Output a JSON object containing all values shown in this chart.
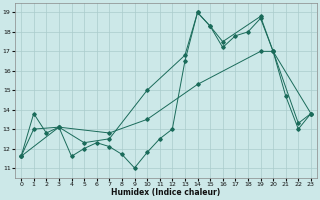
{
  "title": "",
  "xlabel": "Humidex (Indice chaleur)",
  "bg_color": "#cce8e8",
  "grid_color": "#aacccc",
  "line_color": "#1a6b5a",
  "xlim": [
    -0.5,
    23.5
  ],
  "ylim": [
    10.5,
    19.5
  ],
  "xticks": [
    0,
    1,
    2,
    3,
    4,
    5,
    6,
    7,
    8,
    9,
    10,
    11,
    12,
    13,
    14,
    15,
    16,
    17,
    18,
    19,
    20,
    21,
    22,
    23
  ],
  "yticks": [
    11,
    12,
    13,
    14,
    15,
    16,
    17,
    18,
    19
  ],
  "line1_x": [
    0,
    1,
    2,
    3,
    4,
    5,
    6,
    7,
    8,
    9,
    10,
    11,
    12,
    13,
    14,
    15,
    16,
    17,
    18,
    19,
    20,
    21,
    22,
    23
  ],
  "line1_y": [
    11.6,
    13.8,
    12.8,
    13.1,
    11.6,
    12.0,
    12.3,
    12.1,
    11.7,
    11.0,
    11.8,
    12.5,
    13.0,
    16.5,
    19.0,
    18.3,
    17.2,
    17.8,
    18.0,
    18.7,
    17.0,
    14.7,
    13.0,
    13.8
  ],
  "line2_x": [
    0,
    1,
    3,
    5,
    7,
    10,
    13,
    14,
    15,
    16,
    19,
    20,
    22,
    23
  ],
  "line2_y": [
    11.6,
    13.0,
    13.1,
    12.3,
    12.5,
    15.0,
    16.8,
    19.0,
    18.3,
    17.5,
    18.8,
    17.0,
    13.3,
    13.8
  ],
  "line3_x": [
    0,
    3,
    7,
    10,
    14,
    19,
    20,
    23
  ],
  "line3_y": [
    11.6,
    13.1,
    12.8,
    13.5,
    15.3,
    17.0,
    17.0,
    13.8
  ]
}
